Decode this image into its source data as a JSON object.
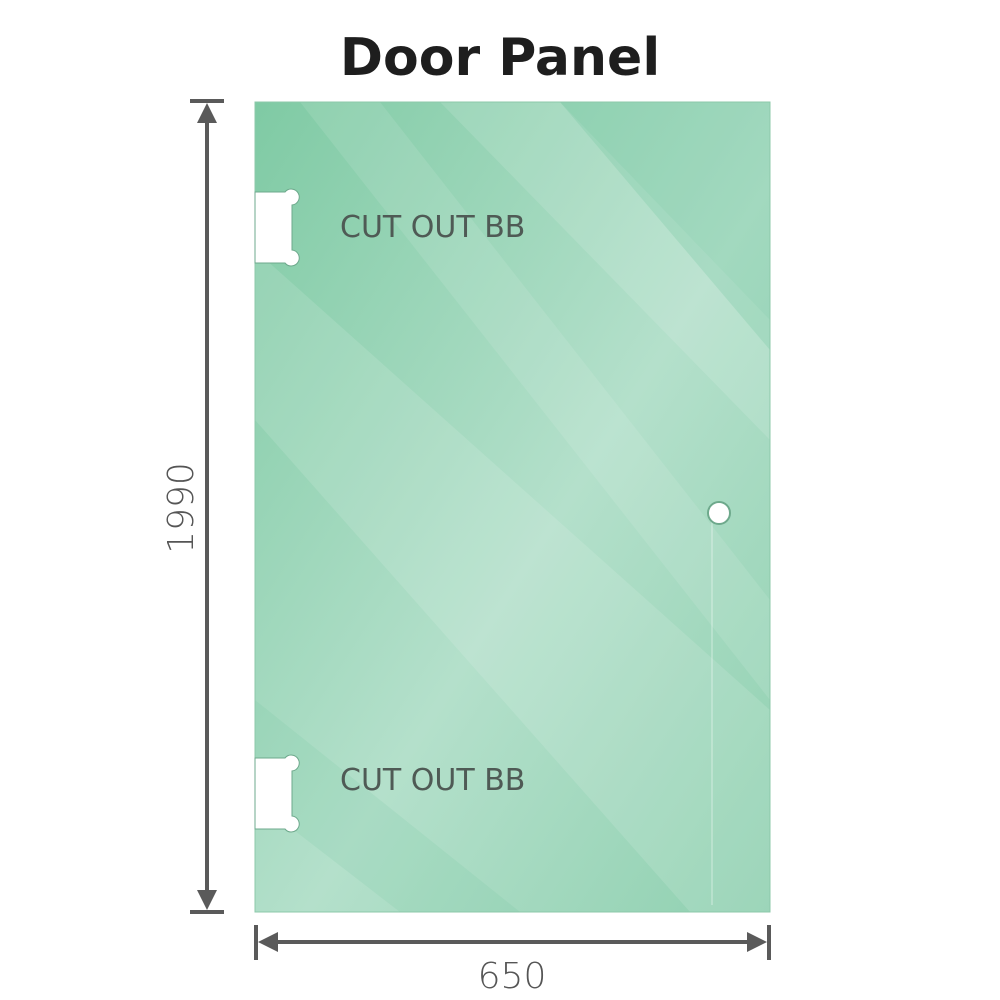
{
  "title": "Door Panel",
  "panel": {
    "cutouts": [
      {
        "label": "CUT OUT BB"
      },
      {
        "label": "CUT OUT BB"
      }
    ],
    "glass_color": "#84cca9"
  },
  "dimensions": {
    "height": "1990",
    "width": "650"
  },
  "colors": {
    "dimension_line": "#5a5a5a",
    "title": "#1e1e1e"
  }
}
